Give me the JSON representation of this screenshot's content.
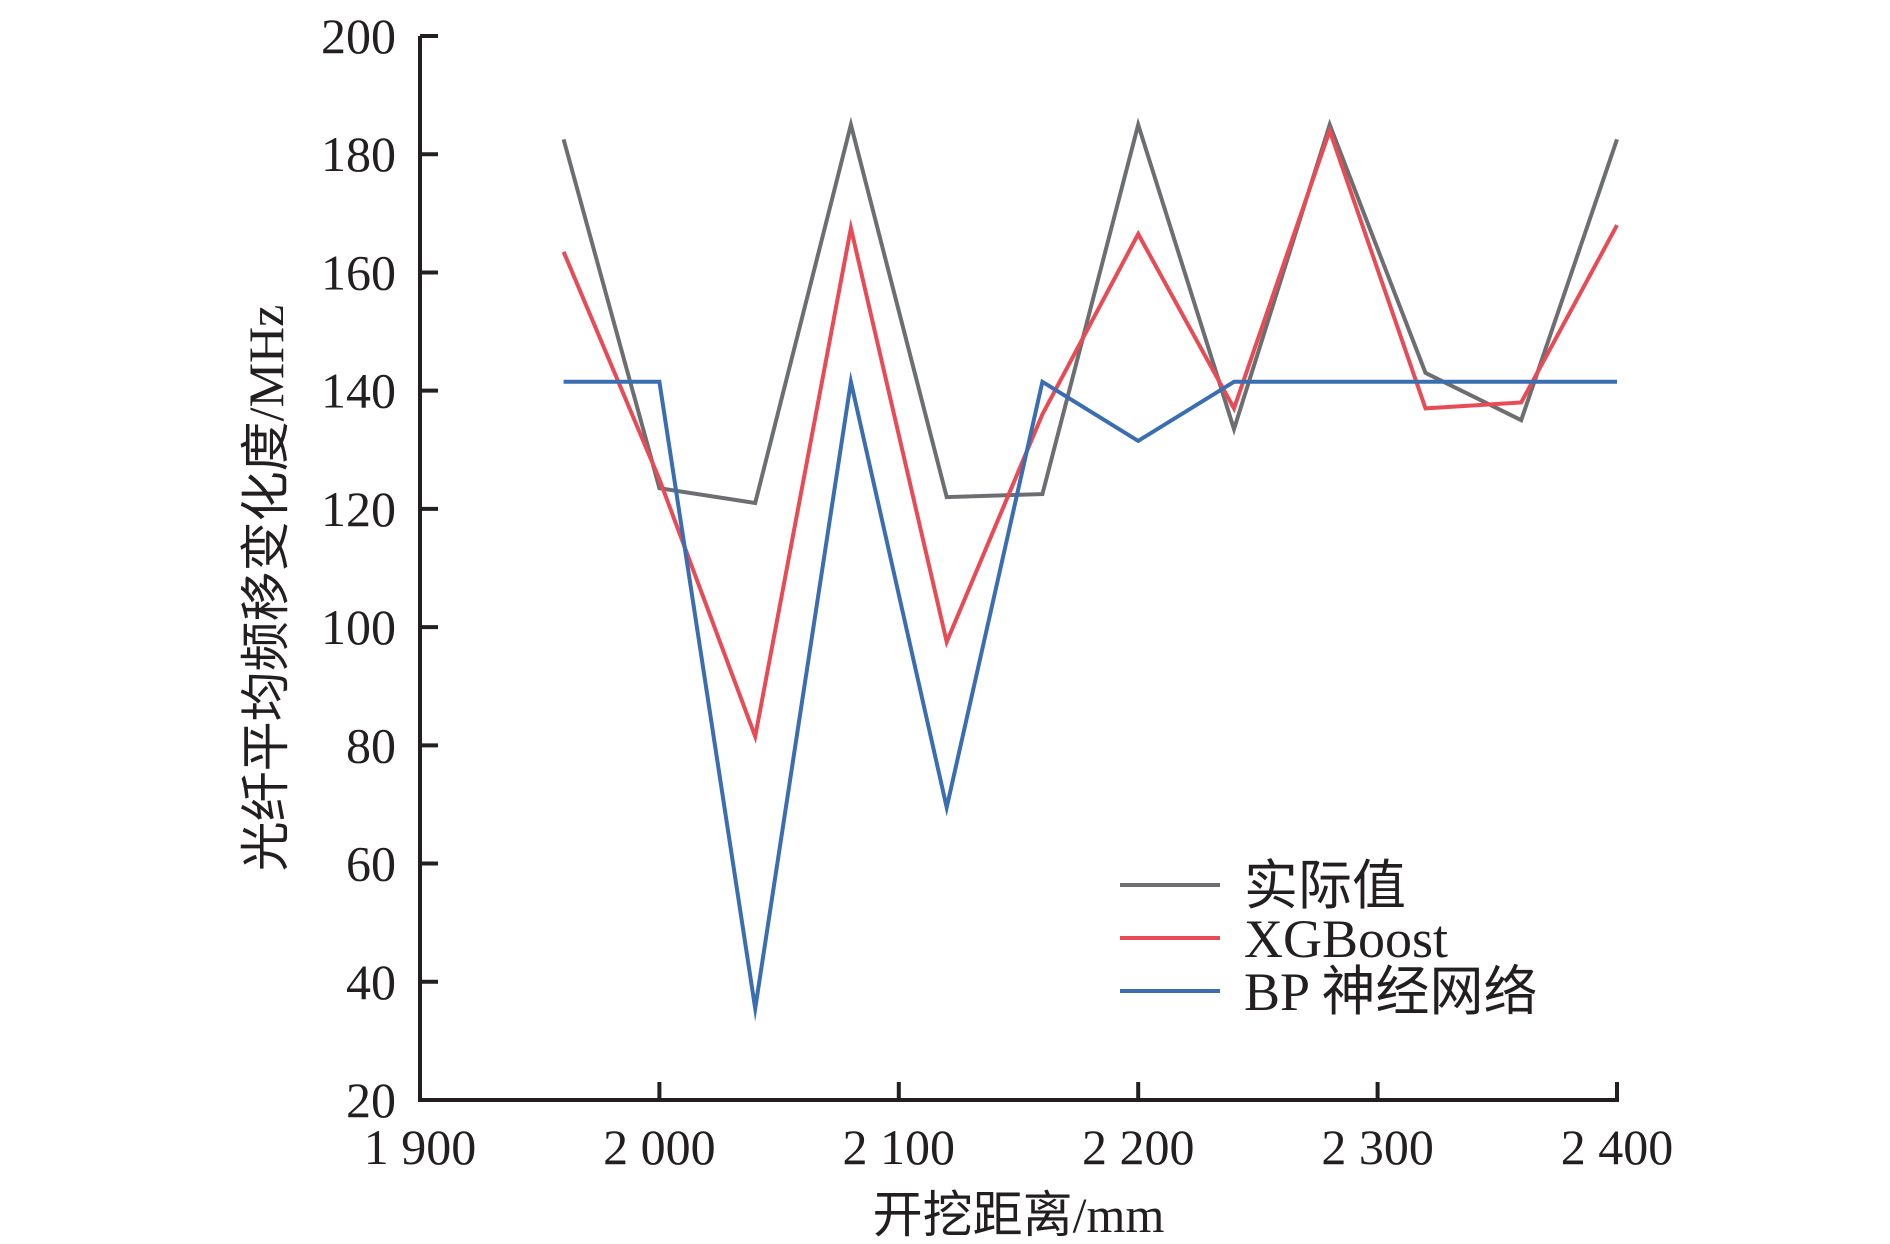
{
  "chart_data": {
    "type": "line",
    "title": "",
    "xlabel": "开挖距离/mm",
    "ylabel": "光纤平均频移变化度/MHz",
    "xlim": [
      1900,
      2400
    ],
    "ylim": [
      20,
      200
    ],
    "x_ticks": [
      1900,
      2000,
      2100,
      2200,
      2300,
      2400
    ],
    "x_tick_labels": [
      "1 900",
      "2 000",
      "2 100",
      "2 200",
      "2 300",
      "2 400"
    ],
    "y_ticks": [
      20,
      40,
      60,
      80,
      100,
      120,
      140,
      160,
      180,
      200
    ],
    "y_tick_labels": [
      "20",
      "40",
      "60",
      "80",
      "100",
      "120",
      "140",
      "160",
      "180",
      "200"
    ],
    "grid": false,
    "legend_position": "bottom-right",
    "x": [
      1960,
      2000,
      2040,
      2080,
      2120,
      2160,
      2200,
      2240,
      2280,
      2320,
      2360,
      2400
    ],
    "series": [
      {
        "name": "实际值",
        "color": "#6d6e71",
        "values": [
          182.5,
          123.5,
          121,
          185,
          122,
          122.5,
          185,
          133.5,
          185,
          143,
          135,
          182.5
        ]
      },
      {
        "name": "XGBoost",
        "color": "#e84b55",
        "values": [
          163.5,
          125,
          81.5,
          167.5,
          97.5,
          136,
          166.5,
          137,
          184,
          137,
          138,
          168
        ]
      },
      {
        "name": "BP 神经网络",
        "color": "#3a6eb0",
        "values": [
          141.5,
          141.5,
          35.5,
          141.5,
          69.5,
          141.5,
          131.5,
          141.5,
          141.5,
          141.5,
          141.5,
          141.5
        ]
      }
    ]
  }
}
